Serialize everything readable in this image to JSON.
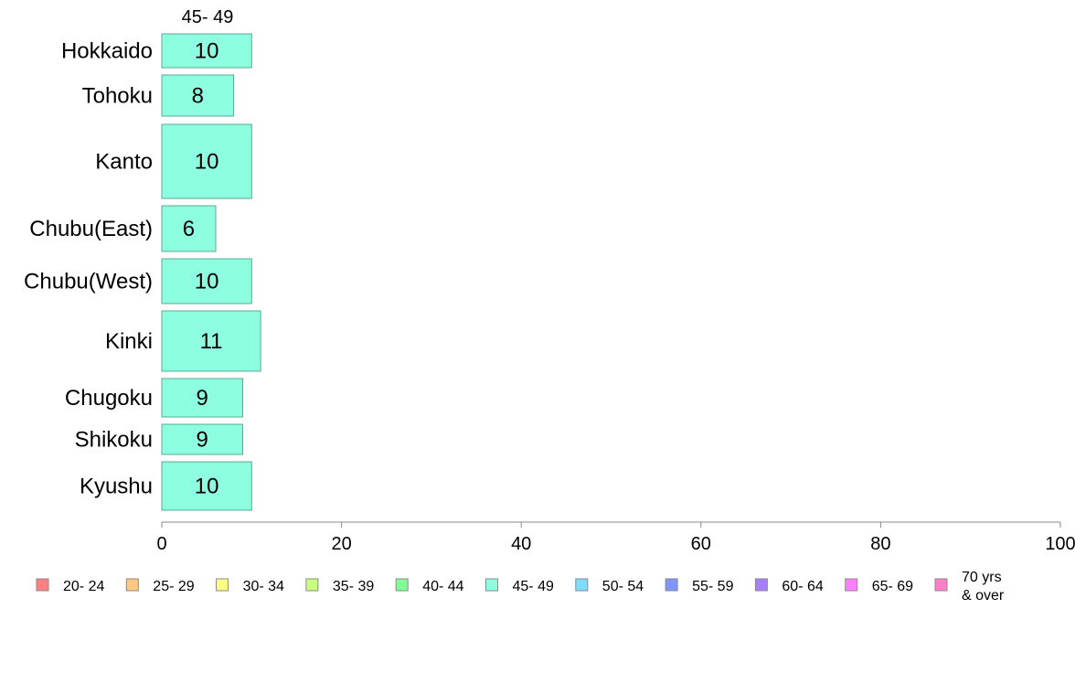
{
  "chart_data": {
    "type": "bar",
    "orientation": "horizontal",
    "stacked": true,
    "column_header": "45- 49",
    "categories": [
      "Hokkaido",
      "Tohoku",
      "Kanto",
      "Chubu(East)",
      "Chubu(West)",
      "Kinki",
      "Chugoku",
      "Shikoku",
      "Kyushu"
    ],
    "series": [
      {
        "name": "45- 49",
        "color": "#8dffe0",
        "values": [
          10,
          8,
          10,
          6,
          10,
          11,
          9,
          9,
          10
        ],
        "data_labels": [
          "10",
          "8",
          "10",
          "6",
          "10",
          "11",
          "9",
          "9",
          "10"
        ]
      }
    ],
    "xlim": [
      0,
      100
    ],
    "x_ticks": [
      "0",
      "20",
      "40",
      "60",
      "80",
      "100"
    ],
    "grid": false,
    "legend_position": "bottom",
    "legend": [
      {
        "label": "20- 24",
        "color": "#ff8080"
      },
      {
        "label": "25- 29",
        "color": "#ffc880"
      },
      {
        "label": "30- 34",
        "color": "#ffff80"
      },
      {
        "label": "35- 39",
        "color": "#c8ff80"
      },
      {
        "label": "40- 44",
        "color": "#80ff96"
      },
      {
        "label": "45- 49",
        "color": "#8dffe0"
      },
      {
        "label": "50- 54",
        "color": "#80dcff"
      },
      {
        "label": "55- 59",
        "color": "#8096ff"
      },
      {
        "label": "60- 64",
        "color": "#a880ff"
      },
      {
        "label": "65- 69",
        "color": "#ff80ff"
      },
      {
        "label": "70 yrs\n& over",
        "color": "#ff80c8"
      }
    ]
  }
}
